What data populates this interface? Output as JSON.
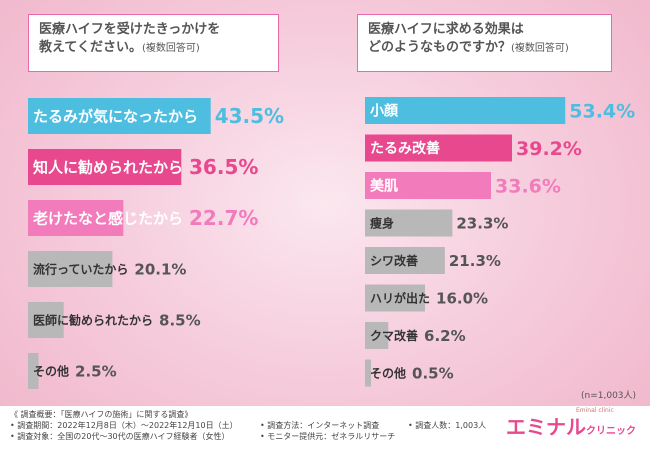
{
  "questions": {
    "left": {
      "title_line1": "医療ハイフを受けたきっかけを",
      "title_line2": "教えてください。",
      "note": "(複数回答可)"
    },
    "right": {
      "title_line1": "医療ハイフに求める効果は",
      "title_line2": "どのようなものですか？",
      "note": "(複数回答可)"
    }
  },
  "chart_data": [
    {
      "type": "bar",
      "orientation": "horizontal",
      "categories": [
        "たるみが気になったから",
        "知人に勧められたから",
        "老けたなと感じたから",
        "流行っていたから",
        "医師に勧められたから",
        "その他"
      ],
      "values": [
        43.5,
        36.5,
        22.7,
        20.1,
        8.5,
        2.5
      ],
      "unit": "%",
      "colors": [
        "#4dbde0",
        "#e8488e",
        "#f27bbc",
        "#b8b8b8",
        "#b8b8b8",
        "#b8b8b8"
      ]
    },
    {
      "type": "bar",
      "orientation": "horizontal",
      "categories": [
        "小顔",
        "たるみ改善",
        "美肌",
        "痩身",
        "シワ改善",
        "ハリが出た",
        "クマ改善",
        "その他"
      ],
      "values": [
        53.4,
        39.2,
        33.6,
        23.3,
        21.3,
        16.0,
        6.2,
        0.5
      ],
      "unit": "%",
      "colors": [
        "#4dbde0",
        "#e8488e",
        "#f27bbc",
        "#b8b8b8",
        "#b8b8b8",
        "#b8b8b8",
        "#b8b8b8",
        "#b8b8b8"
      ]
    }
  ],
  "sample_note": "(n=1,003人)",
  "footer": {
    "summary": "《 調査概要：「医療ハイフの施術」に関する調査》",
    "period": "• 調査期間：2022年12月8日（木）〜2022年12月10日（土）",
    "target": "• 調査対象：全国の20代〜30代の医療ハイフ経験者（女性）",
    "method": "• 調査方法：インターネット調査",
    "monitor": "• モニター提供元：ゼネラルリサーチ",
    "count": "• 調査人数：1,003人"
  },
  "logo": {
    "brand": "エミナル",
    "brand_sub": "クリニック",
    "tagline": "Eminal clinic"
  }
}
